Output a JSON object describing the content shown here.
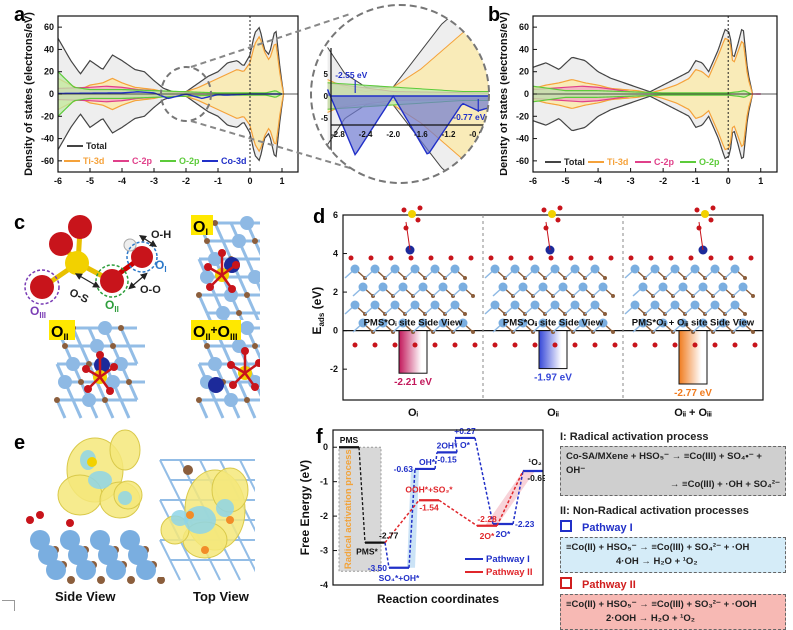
{
  "panel_labels": {
    "a": "a",
    "b": "b",
    "c": "c",
    "d": "d",
    "e": "e",
    "f": "f"
  },
  "chart_data": [
    {
      "id": "a",
      "type": "area",
      "title": "",
      "xlabel": "",
      "ylabel": "Density of states (electrons/eV)",
      "xlim": [
        -6,
        1.5
      ],
      "ylim": [
        -70,
        70
      ],
      "xticks": [
        "-6",
        "-5",
        "-4",
        "-3",
        "-2",
        "-1",
        "0",
        "1"
      ],
      "yticks": [
        "-60",
        "-40",
        "-20",
        "0",
        "20",
        "40",
        "60"
      ],
      "fermi_level": 0,
      "legend": [
        "Total",
        "Ti-3d",
        "C-2p",
        "O-2p",
        "Co-3d"
      ],
      "legend_position": "bottom-left",
      "series": [
        {
          "name": "Total",
          "color": "#444444",
          "x": [
            -6,
            -5.6,
            -5.3,
            -5,
            -4.6,
            -4.3,
            -4,
            -3.6,
            -3.3,
            -3,
            -2.7,
            -2.4,
            -2,
            -1.6,
            -1.3,
            -1,
            -0.7,
            -0.4,
            -0.2,
            0,
            0.15,
            0.3,
            0.45,
            0.6,
            0.8,
            0.95,
            1.05
          ],
          "values": [
            50,
            30,
            18,
            30,
            22,
            35,
            30,
            22,
            20,
            12,
            5,
            2,
            2,
            10,
            16,
            20,
            28,
            30,
            25,
            35,
            55,
            60,
            40,
            35,
            60,
            20,
            0
          ]
        },
        {
          "name": "Ti-3d",
          "color": "#F5A23A",
          "x": [
            -6,
            -5.6,
            -5.3,
            -5,
            -4.6,
            -4.3,
            -4,
            -3.6,
            -3.3,
            -3,
            -2.7,
            -2.4,
            -2,
            -1.6,
            -1.3,
            -1,
            -0.7,
            -0.4,
            -0.2,
            0,
            0.15,
            0.3,
            0.45,
            0.6,
            0.8,
            0.95,
            1.05
          ],
          "values": [
            14,
            8,
            4,
            8,
            10,
            14,
            10,
            6,
            5,
            4,
            2,
            1,
            2,
            6,
            10,
            14,
            18,
            22,
            20,
            28,
            45,
            52,
            38,
            30,
            48,
            15,
            0
          ]
        },
        {
          "name": "C-2p",
          "color": "#E0408A",
          "x": [
            -6,
            -5,
            -4.5,
            -4,
            -3.5,
            -3,
            -2.5,
            -2,
            0,
            1
          ],
          "values": [
            5,
            6,
            7,
            6,
            4,
            3,
            2,
            1,
            0.5,
            0
          ]
        },
        {
          "name": "O-2p",
          "color": "#5CCB3A",
          "x": [
            -6,
            -5.5,
            -5,
            -4,
            -3,
            -2,
            -1,
            0,
            0.5,
            0.8,
            1
          ],
          "values": [
            20,
            6,
            4,
            4,
            3,
            2,
            1,
            1,
            1,
            3,
            0
          ]
        },
        {
          "name": "Co-3d",
          "color": "#2130C8",
          "x": [
            -6,
            -4,
            -3.5,
            -3,
            -2.55,
            -2,
            -1.5,
            -1,
            -0.77,
            0,
            1
          ],
          "values": [
            0.5,
            1,
            2,
            1,
            -4,
            0,
            -4,
            -0.5,
            -1,
            0,
            0
          ]
        }
      ],
      "inset": {
        "xlim": [
          -2.9,
          -0.6
        ],
        "ylim": [
          -7,
          7
        ],
        "xticks": [
          "-2.8",
          "-2.4",
          "-2.0",
          "-1.6",
          "-1.2",
          "-0.8"
        ],
        "yticks": [
          "-5",
          "0",
          "5"
        ],
        "annotations": [
          {
            "text": "-2.55 eV",
            "x": -2.55,
            "color": "#2130C8"
          },
          {
            "text": "-0.77 eV",
            "x": -0.77,
            "color": "#2130C8"
          }
        ]
      }
    },
    {
      "id": "b",
      "type": "area",
      "title": "",
      "xlabel": "",
      "ylabel": "Density of states (electrons/eV)",
      "xlim": [
        -6,
        1.5
      ],
      "ylim": [
        -70,
        70
      ],
      "xticks": [
        "-6",
        "-5",
        "-4",
        "-3",
        "-2",
        "-1",
        "0",
        "1"
      ],
      "yticks": [
        "-60",
        "-40",
        "-20",
        "0",
        "20",
        "40",
        "60"
      ],
      "fermi_level": 0,
      "legend": [
        "Total",
        "Ti-3d",
        "C-2p",
        "O-2p"
      ],
      "legend_position": "bottom",
      "series": [
        {
          "name": "Total",
          "color": "#444444",
          "x": [
            -6,
            -5.6,
            -5.2,
            -4.8,
            -4.4,
            -4,
            -3.6,
            -3.2,
            -2.8,
            -2.4,
            -2,
            -1.6,
            -1.2,
            -1,
            -0.8,
            -0.6,
            -0.3,
            -0.1,
            0.05,
            0.15,
            0.3,
            0.45,
            0.6,
            0.75
          ],
          "values": [
            24,
            28,
            22,
            33,
            30,
            20,
            14,
            10,
            6,
            2,
            8,
            14,
            20,
            30,
            28,
            20,
            40,
            58,
            55,
            30,
            45,
            62,
            20,
            0
          ]
        },
        {
          "name": "Ti-3d",
          "color": "#F5A23A",
          "x": [
            -6,
            -5.6,
            -5.2,
            -4.8,
            -4.4,
            -4,
            -3.6,
            -3.2,
            -2.8,
            -2.4,
            -2,
            -1.6,
            -1.2,
            -1,
            -0.8,
            -0.6,
            -0.3,
            -0.1,
            0.05,
            0.15,
            0.3,
            0.45,
            0.6,
            0.75
          ],
          "values": [
            5,
            8,
            10,
            13,
            10,
            8,
            5,
            4,
            3,
            1,
            4,
            8,
            14,
            22,
            20,
            15,
            35,
            50,
            48,
            26,
            38,
            50,
            15,
            0
          ]
        },
        {
          "name": "C-2p",
          "color": "#E0408A",
          "x": [
            -6,
            -5,
            -4.5,
            -4,
            -3.5,
            -3,
            -2.5,
            -2,
            0,
            1
          ],
          "values": [
            4,
            6,
            7,
            6,
            4,
            2,
            1,
            0.5,
            0.2,
            0
          ]
        },
        {
          "name": "O-2p",
          "color": "#5CCB3A",
          "x": [
            -6,
            -5,
            -4,
            -3,
            -2,
            -1,
            0,
            0.3,
            0.5,
            0.7
          ],
          "values": [
            7,
            3,
            3,
            2,
            1,
            1,
            1,
            2,
            3,
            0
          ]
        }
      ]
    },
    {
      "id": "d",
      "type": "bar",
      "title": "",
      "xlabel": "",
      "ylabel": "E_ads (eV)",
      "ylim": [
        -3.6,
        6
      ],
      "yticks": [
        "-2",
        "0",
        "2",
        "4",
        "6"
      ],
      "categories": [
        "O_I",
        "O_II",
        "O_II + O_III"
      ],
      "values": [
        -2.21,
        -1.97,
        -2.77
      ],
      "value_labels": [
        "-2.21 eV",
        "-1.97 eV",
        "-2.77 eV"
      ],
      "colors": [
        "#C2185B",
        "#3547D8",
        "#F07B1E"
      ],
      "structure_captions": [
        "PMS*O_I site Side View",
        "PMS*O_II site Side View",
        "PMS*O_II + O_III site Side View"
      ]
    },
    {
      "id": "f",
      "type": "line",
      "title": "",
      "xlabel": "Reaction coordinates",
      "ylabel": "Free Energy (eV)",
      "ylim": [
        -4,
        0.5
      ],
      "yticks": [
        "-4",
        "-3",
        "-2",
        "-1",
        "0"
      ],
      "shaded_region_label": "Radical activation process",
      "legend": [
        "Pathway I",
        "Pathway II"
      ],
      "legend_position": "bottom-right",
      "series": [
        {
          "name": "Initial",
          "color": "#000000",
          "levels": [
            {
              "label": "PMS",
              "value": 0
            },
            {
              "label": "PMS*",
              "value": -2.77
            }
          ]
        },
        {
          "name": "Pathway I",
          "color": "#2130C8",
          "levels": [
            {
              "label": "PMS*",
              "value": -2.77
            },
            {
              "label": "SO4*+OH*",
              "value": -3.5
            },
            {
              "label": "OH*",
              "value": -0.63
            },
            {
              "label": "2OH*",
              "value": -0.15
            },
            {
              "label": "O*",
              "value": 0.27
            },
            {
              "label": "2O*",
              "value": -2.23
            },
            {
              "label": "1O2",
              "value": -0.69
            }
          ]
        },
        {
          "name": "Pathway II",
          "color": "#E0262B",
          "levels": [
            {
              "label": "PMS*",
              "value": -2.77
            },
            {
              "label": "OOH*+SO3*",
              "value": -1.54
            },
            {
              "label": "2O*",
              "value": -2.28
            },
            {
              "label": "1O2",
              "value": -0.69
            }
          ]
        }
      ],
      "value_labels": [
        "-2.77",
        "-3.50",
        "-0.63",
        "-0.15",
        "+0.27",
        "-2.23",
        "-0.69",
        "-1.54",
        "-2.28"
      ]
    }
  ],
  "panel_c": {
    "bond_labels": [
      "O-H",
      "O-S",
      "O-O"
    ],
    "site_labels": {
      "oi": "O",
      "oi_sub": "I",
      "oii": "O",
      "oii_sub": "II",
      "oiii": "O",
      "oiii_sub": "III"
    },
    "tile_labels": [
      {
        "main": "O",
        "sub": "I"
      },
      {
        "main": "O",
        "sub": "II"
      },
      {
        "main": "O",
        "sub": "II",
        "plus": "+",
        "main2": "O",
        "sub2": "III"
      }
    ]
  },
  "panel_e": {
    "captions": [
      "Side View",
      "Top View"
    ]
  },
  "scheme": {
    "radical_title": "I: Radical activation process",
    "radical_eq1": "Co-SA/MXene + HSO₅⁻ → ≡Co(III) + SO₄•⁻ + OH⁻",
    "radical_eq2": "→ ≡Co(III) + ·OH + SO₄²⁻",
    "nonradical_title": "II: Non-Radical activation processes",
    "pathway1_title": "Pathway I",
    "pathway1_eq1": "≡Co(II) + HSO₅⁻ → ≡Co(III) + SO₄²⁻ + ·OH",
    "pathway1_eq2": "4·OH → H₂O + ¹O₂",
    "pathway2_title": "Pathway II",
    "pathway2_eq1": "≡Co(II) + HSO₅⁻ → ≡Co(III) + SO₃²⁻ + ·OOH",
    "pathway2_eq2": "2·OOH → H₂O + ¹O₂",
    "colors": {
      "radical_bg": "#CFCFCF",
      "pathway1_bg": "#D5ECF8",
      "pathway2_bg": "#F7B9B4",
      "pathway1": "#2130C8",
      "pathway2": "#D01E1E"
    }
  }
}
